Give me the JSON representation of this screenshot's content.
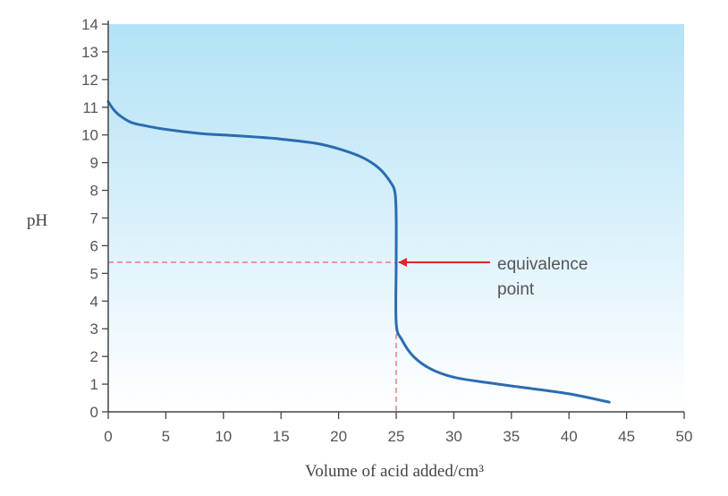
{
  "chart_data": {
    "type": "line",
    "xlabel": "Volume of acid added/cm³",
    "ylabel": "pH",
    "xlim": [
      0,
      50
    ],
    "ylim": [
      0,
      14
    ],
    "x_ticks": [
      0,
      5,
      10,
      15,
      20,
      25,
      30,
      35,
      40,
      45,
      50
    ],
    "y_ticks": [
      0,
      1,
      2,
      3,
      4,
      5,
      6,
      7,
      8,
      9,
      10,
      11,
      12,
      13,
      14
    ],
    "grid": false,
    "background": "gradient light blue (top) to white (bottom)",
    "series": [
      {
        "color": "#2b6cb0",
        "points": [
          [
            0,
            11.2
          ],
          [
            0.5,
            10.9
          ],
          [
            1,
            10.7
          ],
          [
            2,
            10.45
          ],
          [
            3,
            10.35
          ],
          [
            5,
            10.2
          ],
          [
            8,
            10.05
          ],
          [
            10,
            10.0
          ],
          [
            13,
            9.92
          ],
          [
            15,
            9.85
          ],
          [
            18,
            9.7
          ],
          [
            20,
            9.5
          ],
          [
            22,
            9.2
          ],
          [
            23.5,
            8.8
          ],
          [
            24.5,
            8.3
          ],
          [
            24.9,
            7.9
          ],
          [
            25,
            7.0
          ],
          [
            25,
            5.4
          ],
          [
            25,
            3.2
          ],
          [
            25.5,
            2.6
          ],
          [
            26.5,
            2.0
          ],
          [
            28,
            1.55
          ],
          [
            30,
            1.25
          ],
          [
            33,
            1.05
          ],
          [
            36,
            0.88
          ],
          [
            40,
            0.65
          ],
          [
            43.5,
            0.35
          ]
        ]
      }
    ],
    "equivalence_point": {
      "x": 25,
      "y": 5.4
    },
    "annotations": [
      {
        "text_lines": [
          "equivalence",
          "point"
        ],
        "target": {
          "x": 25,
          "y": 5.4
        },
        "arrow_color": "#e3242b"
      }
    ],
    "guide_lines": {
      "style": "dashed",
      "color": "#e8868a",
      "x": 25,
      "y": 5.4
    }
  }
}
